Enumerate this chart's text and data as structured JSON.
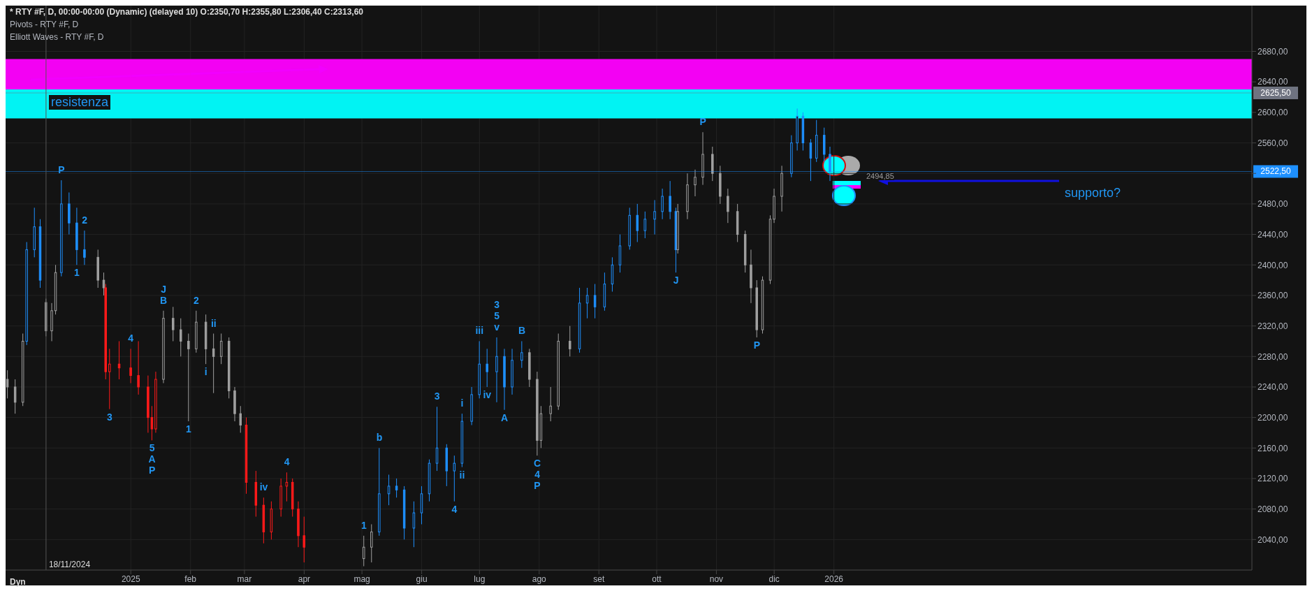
{
  "chart_data": {
    "type": "candlestick",
    "title": "* RTY #F, D, 00:00-00:00 (Dynamic) (delayed 10) O:2350,70 H:2355,80 L:2306,40 C:2313,60",
    "x": [
      "2024-10-29",
      "2024-11-02",
      "2024-11-06",
      "2024-11-08",
      "2024-11-12",
      "2024-11-15",
      "2024-11-18",
      "2024-11-21",
      "2024-11-23",
      "2024-11-26",
      "2024-11-30",
      "2024-12-04",
      "2024-12-08",
      "2024-12-15",
      "2024-12-18",
      "2024-12-19",
      "2024-12-21",
      "2024-12-26",
      "2025-01-01",
      "2025-01-05",
      "2025-01-10",
      "2025-01-12",
      "2025-01-14",
      "2025-01-18",
      "2025-01-23",
      "2025-01-27",
      "2025-01-31",
      "2025-02-04",
      "2025-02-09",
      "2025-02-13",
      "2025-02-17",
      "2025-02-21",
      "2025-02-24",
      "2025-02-27",
      "2025-03-02",
      "2025-03-07",
      "2025-03-11",
      "2025-03-15",
      "2025-03-20",
      "2025-03-23",
      "2025-03-26",
      "2025-03-29",
      "2025-04-01",
      "2025-05-02",
      "2025-05-06",
      "2025-05-10",
      "2025-05-15",
      "2025-05-19",
      "2025-05-23",
      "2025-05-28",
      "2025-06-01",
      "2025-06-05",
      "2025-06-09",
      "2025-06-14",
      "2025-06-18",
      "2025-06-22",
      "2025-06-27",
      "2025-07-01",
      "2025-07-05",
      "2025-07-10",
      "2025-07-14",
      "2025-07-18",
      "2025-07-23",
      "2025-07-27",
      "2025-07-31",
      "2025-08-02",
      "2025-08-07",
      "2025-08-11",
      "2025-08-17",
      "2025-08-22",
      "2025-08-26",
      "2025-08-30",
      "2025-09-04",
      "2025-09-08",
      "2025-09-12",
      "2025-09-17",
      "2025-09-21",
      "2025-09-25",
      "2025-09-30",
      "2025-10-04",
      "2025-10-08",
      "2025-10-11",
      "2025-10-12",
      "2025-10-17",
      "2025-10-21",
      "2025-10-25",
      "2025-10-30",
      "2025-11-03",
      "2025-11-07",
      "2025-11-12",
      "2025-11-16",
      "2025-11-19",
      "2025-11-22",
      "2025-11-25",
      "2025-11-29",
      "2025-12-01",
      "2025-12-05",
      "2025-12-10",
      "2025-12-13",
      "2025-12-16",
      "2025-12-20",
      "2025-12-23",
      "2025-12-27",
      "2025-12-30"
    ],
    "ohlc": [
      [
        2250,
        2262,
        2225,
        2240
      ],
      [
        2240,
        2250,
        2205,
        2220
      ],
      [
        2220,
        2310,
        2215,
        2300
      ],
      [
        2300,
        2430,
        2295,
        2420
      ],
      [
        2420,
        2475,
        2410,
        2450
      ],
      [
        2450,
        2460,
        2370,
        2380
      ],
      [
        2350.7,
        2355.8,
        2306.4,
        2313.6
      ],
      [
        2313.6,
        2350,
        2300,
        2340
      ],
      [
        2340,
        2400,
        2335,
        2390
      ],
      [
        2390,
        2511,
        2385,
        2480
      ],
      [
        2480,
        2495,
        2440,
        2455
      ],
      [
        2455,
        2475,
        2400,
        2420
      ],
      [
        2420,
        2445,
        2400,
        2410
      ],
      [
        2410,
        2420,
        2370,
        2380
      ],
      [
        2380,
        2390,
        2360,
        2370
      ],
      [
        2370,
        2375,
        2250,
        2260
      ],
      [
        2260,
        2290,
        2211,
        2270
      ],
      [
        2270,
        2300,
        2250,
        2265
      ],
      [
        2265,
        2290,
        2245,
        2255
      ],
      [
        2255,
        2300,
        2230,
        2240
      ],
      [
        2240,
        2255,
        2180,
        2200
      ],
      [
        2200,
        2215,
        2170,
        2185
      ],
      [
        2185,
        2260,
        2180,
        2250
      ],
      [
        2250,
        2340,
        2245,
        2330
      ],
      [
        2330,
        2345,
        2300,
        2315
      ],
      [
        2315,
        2330,
        2280,
        2300
      ],
      [
        2300,
        2310,
        2195,
        2290
      ],
      [
        2290,
        2340,
        2285,
        2325
      ],
      [
        2325,
        2335,
        2270,
        2290
      ],
      [
        2290,
        2310,
        2232,
        2280
      ],
      [
        2280,
        2310,
        2270,
        2300
      ],
      [
        2300,
        2305,
        2225,
        2235
      ],
      [
        2235,
        2240,
        2195,
        2205
      ],
      [
        2205,
        2215,
        2180,
        2190
      ],
      [
        2190,
        2200,
        2100,
        2115
      ],
      [
        2115,
        2130,
        2070,
        2085
      ],
      [
        2085,
        2095,
        2035,
        2050
      ],
      [
        2050,
        2090,
        2040,
        2080
      ],
      [
        2080,
        2120,
        2070,
        2110
      ],
      [
        2110,
        2128,
        2090,
        2115
      ],
      [
        2115,
        2120,
        2070,
        2080
      ],
      [
        2080,
        2090,
        2030,
        2045
      ],
      [
        2045,
        2070,
        2010,
        2030
      ],
      [
        2015,
        2045,
        2005,
        2030
      ],
      [
        2030,
        2060,
        2010,
        2050
      ],
      [
        2050,
        2160,
        2045,
        2100
      ],
      [
        2100,
        2125,
        2085,
        2110
      ],
      [
        2110,
        2120,
        2095,
        2105
      ],
      [
        2105,
        2110,
        2040,
        2055
      ],
      [
        2055,
        2090,
        2030,
        2075
      ],
      [
        2075,
        2110,
        2060,
        2100
      ],
      [
        2100,
        2145,
        2090,
        2140
      ],
      [
        2140,
        2214,
        2130,
        2160
      ],
      [
        2160,
        2165,
        2110,
        2130
      ],
      [
        2130,
        2150,
        2090,
        2140
      ],
      [
        2140,
        2205,
        2135,
        2195
      ],
      [
        2195,
        2240,
        2190,
        2230
      ],
      [
        2230,
        2300,
        2225,
        2270
      ],
      [
        2270,
        2290,
        2240,
        2260
      ],
      [
        2260,
        2305,
        2220,
        2280
      ],
      [
        2280,
        2290,
        2210,
        2240
      ],
      [
        2240,
        2290,
        2230,
        2275
      ],
      [
        2275,
        2300,
        2265,
        2285
      ],
      [
        2285,
        2290,
        2240,
        2250
      ],
      [
        2250,
        2260,
        2150,
        2170
      ],
      [
        2170,
        2215,
        2160,
        2205
      ],
      [
        2205,
        2240,
        2195,
        2215
      ],
      [
        2215,
        2310,
        2210,
        2300
      ],
      [
        2300,
        2320,
        2280,
        2290
      ],
      [
        2290,
        2370,
        2285,
        2350
      ],
      [
        2350,
        2370,
        2330,
        2360
      ],
      [
        2360,
        2375,
        2330,
        2345
      ],
      [
        2345,
        2390,
        2340,
        2375
      ],
      [
        2375,
        2410,
        2365,
        2400
      ],
      [
        2400,
        2440,
        2390,
        2425
      ],
      [
        2425,
        2475,
        2420,
        2465
      ],
      [
        2465,
        2480,
        2430,
        2445
      ],
      [
        2445,
        2470,
        2435,
        2460
      ],
      [
        2460,
        2485,
        2440,
        2470
      ],
      [
        2470,
        2500,
        2460,
        2490
      ],
      [
        2490,
        2510,
        2460,
        2470
      ],
      [
        2470,
        2475,
        2390,
        2420
      ],
      [
        2420,
        2480,
        2415,
        2470
      ],
      [
        2470,
        2520,
        2460,
        2505
      ],
      [
        2505,
        2525,
        2490,
        2515
      ],
      [
        2515,
        2574,
        2505,
        2545
      ],
      [
        2545,
        2555,
        2510,
        2520
      ],
      [
        2520,
        2530,
        2480,
        2490
      ],
      [
        2490,
        2500,
        2455,
        2470
      ],
      [
        2470,
        2480,
        2430,
        2440
      ],
      [
        2440,
        2445,
        2390,
        2400
      ],
      [
        2400,
        2420,
        2350,
        2370
      ],
      [
        2370,
        2380,
        2305,
        2315
      ],
      [
        2315,
        2385,
        2310,
        2380
      ],
      [
        2380,
        2465,
        2375,
        2460
      ],
      [
        2460,
        2500,
        2455,
        2490
      ],
      [
        2490,
        2530,
        2470,
        2520
      ],
      [
        2520,
        2570,
        2515,
        2560
      ],
      [
        2560,
        2605,
        2550,
        2595
      ],
      [
        2595,
        2600,
        2550,
        2560
      ],
      [
        2560,
        2565,
        2510,
        2540
      ],
      [
        2540,
        2590,
        2535,
        2570
      ],
      [
        2570,
        2580,
        2535,
        2545
      ],
      [
        2545,
        2555,
        2510,
        2522.5
      ]
    ],
    "colors": [
      "#a0a0a0",
      "#a0a0a0",
      "#a0a0a0",
      "#1e90ff",
      "#1e90ff",
      "#1e90ff",
      "#a0a0a0",
      "#a0a0a0",
      "#a0a0a0",
      "#1e90ff",
      "#1e90ff",
      "#1e90ff",
      "#1e90ff",
      "#a0a0a0",
      "#a0a0a0",
      "#ff1a1a",
      "#ff1a1a",
      "#ff1a1a",
      "#ff1a1a",
      "#ff1a1a",
      "#ff1a1a",
      "#ff1a1a",
      "#ff1a1a",
      "#a0a0a0",
      "#a0a0a0",
      "#a0a0a0",
      "#a0a0a0",
      "#a0a0a0",
      "#a0a0a0",
      "#a0a0a0",
      "#a0a0a0",
      "#a0a0a0",
      "#a0a0a0",
      "#a0a0a0",
      "#ff1a1a",
      "#ff1a1a",
      "#ff1a1a",
      "#ff1a1a",
      "#ff1a1a",
      "#ff1a1a",
      "#ff1a1a",
      "#ff1a1a",
      "#ff1a1a",
      "#a0a0a0",
      "#a0a0a0",
      "#1e90ff",
      "#1e90ff",
      "#1e90ff",
      "#1e90ff",
      "#1e90ff",
      "#1e90ff",
      "#1e90ff",
      "#1e90ff",
      "#1e90ff",
      "#1e90ff",
      "#1e90ff",
      "#1e90ff",
      "#1e90ff",
      "#1e90ff",
      "#1e90ff",
      "#1e90ff",
      "#1e90ff",
      "#1e90ff",
      "#a0a0a0",
      "#a0a0a0",
      "#a0a0a0",
      "#a0a0a0",
      "#a0a0a0",
      "#a0a0a0",
      "#1e90ff",
      "#1e90ff",
      "#1e90ff",
      "#1e90ff",
      "#1e90ff",
      "#1e90ff",
      "#1e90ff",
      "#1e90ff",
      "#1e90ff",
      "#1e90ff",
      "#1e90ff",
      "#1e90ff",
      "#1e90ff",
      "#a0a0a0",
      "#a0a0a0",
      "#a0a0a0",
      "#a0a0a0",
      "#a0a0a0",
      "#a0a0a0",
      "#a0a0a0",
      "#a0a0a0",
      "#a0a0a0",
      "#a0a0a0",
      "#a0a0a0",
      "#a0a0a0",
      "#a0a0a0",
      "#a0a0a0",
      "#a0a0a0",
      "#1e90ff",
      "#1e90ff",
      "#1e90ff",
      "#1e90ff",
      "#1e90ff",
      "#1e90ff",
      "#1e90ff"
    ],
    "xlim": [
      "2024-10-28",
      "2026-08-06"
    ],
    "xticks": [
      {
        "value": "2025-01-01",
        "label": "2025"
      },
      {
        "value": "2025-02-01",
        "label": "feb"
      },
      {
        "value": "2025-03-01",
        "label": "mar"
      },
      {
        "value": "2025-04-01",
        "label": "apr"
      },
      {
        "value": "2025-05-01",
        "label": "mag"
      },
      {
        "value": "2025-06-01",
        "label": "giu"
      },
      {
        "value": "2025-07-01",
        "label": "lug"
      },
      {
        "value": "2025-08-01",
        "label": "ago"
      },
      {
        "value": "2025-09-01",
        "label": "set"
      },
      {
        "value": "2025-10-01",
        "label": "ott"
      },
      {
        "value": "2025-11-01",
        "label": "nov"
      },
      {
        "value": "2025-12-01",
        "label": "dic"
      },
      {
        "value": "2026-01-01",
        "label": "2026"
      }
    ],
    "ylim": [
      2000,
      2740
    ],
    "yticks": [
      {
        "value": 2040,
        "label": "2040,00"
      },
      {
        "value": 2080,
        "label": "2080,00"
      },
      {
        "value": 2120,
        "label": "2120,00"
      },
      {
        "value": 2160,
        "label": "2160,00"
      },
      {
        "value": 2200,
        "label": "2200,00"
      },
      {
        "value": 2240,
        "label": "2240,00"
      },
      {
        "value": 2280,
        "label": "2280,00"
      },
      {
        "value": 2320,
        "label": "2320,00"
      },
      {
        "value": 2360,
        "label": "2360,00"
      },
      {
        "value": 2400,
        "label": "2400,00"
      },
      {
        "value": 2440,
        "label": "2440,00"
      },
      {
        "value": 2480,
        "label": "2480,00"
      },
      {
        "value": 2520,
        "label": null
      },
      {
        "value": 2560,
        "label": "2560,00"
      },
      {
        "value": 2600,
        "label": "2600,00"
      },
      {
        "value": 2640,
        "label": "2640,00"
      },
      {
        "value": 2680,
        "label": "2680,00"
      }
    ],
    "grid": true,
    "bands": [
      {
        "axis": "y",
        "from": 2630,
        "to": 2670,
        "color": "#ff00ff"
      },
      {
        "axis": "y",
        "from": 2592,
        "to": 2630,
        "color": "#00ffff"
      }
    ],
    "ref_lines": [
      {
        "axis": "y",
        "value": 2625.5,
        "label": "2625,50",
        "color": "#6f7380"
      },
      {
        "axis": "y",
        "value": 2522.5,
        "label": "2522,50",
        "color": "#1e90ff"
      },
      {
        "axis": "x",
        "value": "2024-11-18",
        "label": "18/11/2024",
        "color": "#555555"
      }
    ],
    "annotations": [
      "Pivots - RTY #F, D",
      "Elliott Waves - RTY #F, D",
      "Dyn",
      "resistenza",
      "supporto?",
      "2494,85",
      {
        "text": "P",
        "x": "2024-11-26",
        "y": 2511
      },
      {
        "text": "2",
        "x": "2024-12-08",
        "y": 2445
      },
      {
        "text": "1",
        "x": "2024-12-04",
        "y": 2400
      },
      {
        "text": "3",
        "x": "2024-12-21",
        "y": 2211
      },
      {
        "text": "4",
        "x": "2025-01-01",
        "y": 2290
      },
      {
        "text": "B",
        "x": "2025-01-18",
        "y": 2340
      },
      {
        "text": "J",
        "x": "2025-01-18",
        "y": 2340
      },
      {
        "text": "2",
        "x": "2025-02-04",
        "y": 2340
      },
      {
        "text": "ii",
        "x": "2025-02-13",
        "y": 2310
      },
      {
        "text": "i",
        "x": "2025-02-09",
        "y": 2270
      },
      {
        "text": "1",
        "x": "2025-01-31",
        "y": 2195
      },
      {
        "text": "5",
        "x": "2025-01-12",
        "y": 2170
      },
      {
        "text": "A",
        "x": "2025-01-12",
        "y": 2170
      },
      {
        "text": "P",
        "x": "2025-01-12",
        "y": 2170
      },
      {
        "text": "4",
        "x": "2025-03-23",
        "y": 2128
      },
      {
        "text": "iv",
        "x": "2025-03-11",
        "y": 2095
      },
      {
        "text": "b",
        "x": "2025-05-10",
        "y": 2160
      },
      {
        "text": "1",
        "x": "2025-05-02",
        "y": 2045
      },
      {
        "text": "3",
        "x": "2025-06-09",
        "y": 2214
      },
      {
        "text": "i",
        "x": "2025-06-22",
        "y": 2205
      },
      {
        "text": "ii",
        "x": "2025-06-22",
        "y": 2135
      },
      {
        "text": "iv",
        "x": "2025-07-05",
        "y": 2240
      },
      {
        "text": "iii",
        "x": "2025-07-01",
        "y": 2300
      },
      {
        "text": "4",
        "x": "2025-06-18",
        "y": 2090
      },
      {
        "text": "v",
        "x": "2025-07-10",
        "y": 2305
      },
      {
        "text": "5",
        "x": "2025-07-10",
        "y": 2305
      },
      {
        "text": "3",
        "x": "2025-07-10",
        "y": 2305
      },
      {
        "text": "B",
        "x": "2025-07-23",
        "y": 2300
      },
      {
        "text": "A",
        "x": "2025-07-14",
        "y": 2210
      },
      {
        "text": "C",
        "x": "2025-07-31",
        "y": 2150
      },
      {
        "text": "4",
        "x": "2025-07-31",
        "y": 2150
      },
      {
        "text": "P",
        "x": "2025-07-31",
        "y": 2150
      },
      {
        "text": "J",
        "x": "2025-10-11",
        "y": 2390
      },
      {
        "text": "P",
        "x": "2025-10-25",
        "y": 2574
      },
      {
        "text": "P",
        "x": "2025-11-22",
        "y": 2305
      }
    ]
  }
}
